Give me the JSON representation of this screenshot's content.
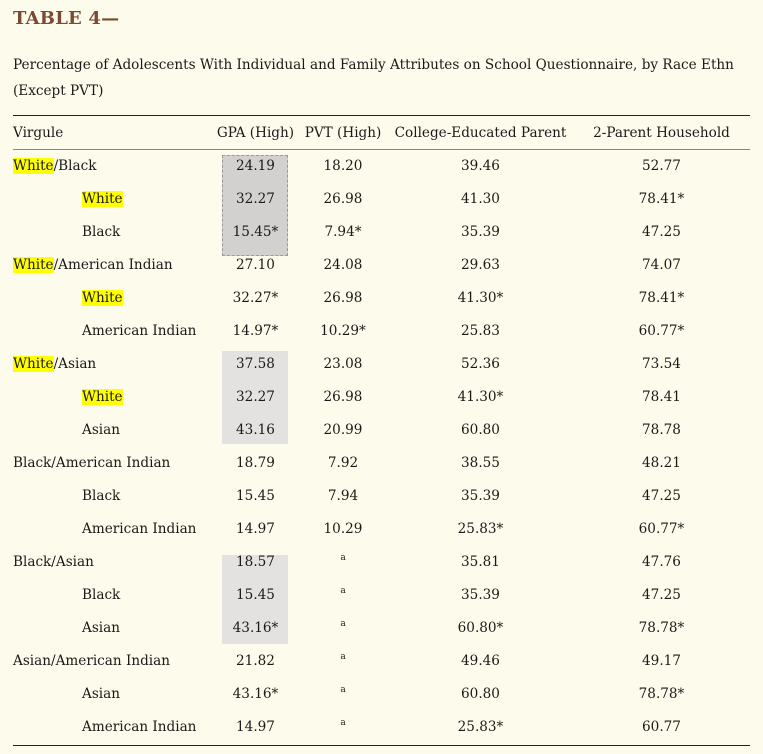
{
  "title": "TABLE 4—",
  "caption_line1": "Percentage of Adolescents With Individual and Family Attributes on School Questionnaire, by Race Ethn",
  "caption_line2": "(Except PVT)",
  "headers": [
    "Virgule",
    "GPA (High)",
    "PVT (High)",
    "College-Educated Parent",
    "2-Parent Household"
  ],
  "rows": [
    {
      "highlight": "White",
      "label": "/Black",
      "gpa": "24.19",
      "pvt": "18.20",
      "college": "39.46",
      "parent": "52.77"
    },
    {
      "sub": true,
      "highlight": "White",
      "label": "",
      "gpa": "32.27",
      "pvt": "26.98",
      "college": "41.30",
      "parent": "78.41*"
    },
    {
      "sub": true,
      "highlight": "",
      "label": "Black",
      "gpa": "15.45*",
      "pvt": "7.94*",
      "college": "35.39",
      "parent": "47.25"
    },
    {
      "highlight": "White",
      "label": "/American Indian",
      "gpa": "27.10",
      "pvt": "24.08",
      "college": "29.63",
      "parent": "74.07"
    },
    {
      "sub": true,
      "highlight": "White",
      "label": "",
      "gpa": "32.27*",
      "pvt": "26.98",
      "college": "41.30*",
      "parent": "78.41*"
    },
    {
      "sub": true,
      "highlight": "",
      "label": "American Indian",
      "gpa": "14.97*",
      "pvt": "10.29*",
      "college": "25.83",
      "parent": "60.77*"
    },
    {
      "highlight": "White",
      "label": "/Asian",
      "gpa": "37.58",
      "pvt": "23.08",
      "college": "52.36",
      "parent": "73.54"
    },
    {
      "sub": true,
      "highlight": "White",
      "label": "",
      "gpa": "32.27",
      "pvt": "26.98",
      "college": "41.30*",
      "parent": "78.41"
    },
    {
      "sub": true,
      "highlight": "",
      "label": "Asian",
      "gpa": "43.16",
      "pvt": "20.99",
      "college": "60.80",
      "parent": "78.78"
    },
    {
      "highlight": "",
      "label": "Black/American Indian",
      "gpa": "18.79",
      "pvt": "7.92",
      "college": "38.55",
      "parent": "48.21"
    },
    {
      "sub": true,
      "highlight": "",
      "label": "Black",
      "gpa": "15.45",
      "pvt": "7.94",
      "college": "35.39",
      "parent": "47.25"
    },
    {
      "sub": true,
      "highlight": "",
      "label": "American Indian",
      "gpa": "14.97",
      "pvt": "10.29",
      "college": "25.83*",
      "parent": "60.77*"
    },
    {
      "highlight": "",
      "label": "Black/Asian",
      "gpa": "18.57",
      "pvt": "a",
      "college": "35.81",
      "parent": "47.76"
    },
    {
      "sub": true,
      "highlight": "",
      "label": "Black",
      "gpa": "15.45",
      "pvt": "a",
      "college": "35.39",
      "parent": "47.25"
    },
    {
      "sub": true,
      "highlight": "",
      "label": "Asian",
      "gpa": "43.16*",
      "pvt": "a",
      "college": "60.80*",
      "parent": "78.78*"
    },
    {
      "highlight": "",
      "label": "Asian/American Indian",
      "gpa": "21.82",
      "pvt": "a",
      "college": "49.46",
      "parent": "49.17"
    },
    {
      "sub": true,
      "highlight": "",
      "label": "Asian",
      "gpa": "43.16*",
      "pvt": "a",
      "college": "60.80",
      "parent": "78.78*"
    },
    {
      "sub": true,
      "highlight": "",
      "label": "American Indian",
      "gpa": "14.97",
      "pvt": "a",
      "college": "25.83*",
      "parent": "60.77"
    }
  ],
  "colors": {
    "title": "#7a4a32",
    "background": "#fdfbeb",
    "text_highlight": "#ffff00",
    "cell_highlight": "#e3e2e1"
  }
}
